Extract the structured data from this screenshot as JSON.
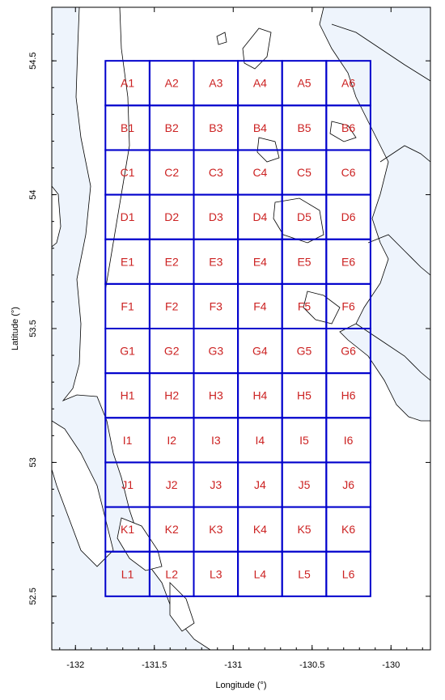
{
  "map": {
    "xlabel": "Longitude (°)",
    "ylabel": "Latitude (°)",
    "x_range": [
      -132.15,
      -129.75
    ],
    "y_range": [
      52.3,
      54.7
    ],
    "x_ticks": [
      -132,
      -131.5,
      -131,
      -130.5,
      -130
    ],
    "x_tick_labels": [
      "-132",
      "-131.5",
      "-131",
      "-130.5",
      "-130"
    ],
    "y_ticks": [
      52.5,
      53,
      53.5,
      54,
      54.5
    ],
    "y_tick_labels": [
      "52.5",
      "53",
      "53.5",
      "54",
      "54.5"
    ],
    "colors": {
      "grid": "#0000cc",
      "label": "#cc2222",
      "land": "#ffffff",
      "water": "#eef4fc",
      "coast": "#000000"
    },
    "grid": {
      "lon_edges": [
        -131.81,
        -131.31,
        -130.81,
        -130.31,
        -130.13
      ],
      "lon_edges_full": [
        -131.81,
        -131.31,
        -130.81,
        -130.31,
        -130.13
      ],
      "rows": [
        "A",
        "B",
        "C",
        "D",
        "E",
        "F",
        "G",
        "H",
        "I",
        "J",
        "K",
        "L"
      ],
      "cols": [
        "1",
        "2",
        "3",
        "4",
        "5",
        "6"
      ],
      "lat_top": 54.5,
      "lat_bottom": 52.5
    },
    "cells": [
      [
        "A1",
        "A2",
        "A3",
        "A4",
        "A5",
        "A6"
      ],
      [
        "B1",
        "B2",
        "B3",
        "B4",
        "B5",
        "B6"
      ],
      [
        "C1",
        "C2",
        "C3",
        "C4",
        "C5",
        "C6"
      ],
      [
        "D1",
        "D2",
        "D3",
        "D4",
        "D5",
        "D6"
      ],
      [
        "E1",
        "E2",
        "E3",
        "E4",
        "E5",
        "E6"
      ],
      [
        "F1",
        "F2",
        "F3",
        "F4",
        "F5",
        "F6"
      ],
      [
        "G1",
        "G2",
        "G3",
        "G4",
        "G5",
        "G6"
      ],
      [
        "H1",
        "H2",
        "H3",
        "H4",
        "H5",
        "H6"
      ],
      [
        "I1",
        "I2",
        "I3",
        "I4",
        "I5",
        "I6"
      ],
      [
        "J1",
        "J2",
        "J3",
        "J4",
        "J5",
        "J6"
      ],
      [
        "K1",
        "K2",
        "K3",
        "K4",
        "K5",
        "K6"
      ],
      [
        "L1",
        "L2",
        "L3",
        "L4",
        "L5",
        "L6"
      ]
    ]
  }
}
